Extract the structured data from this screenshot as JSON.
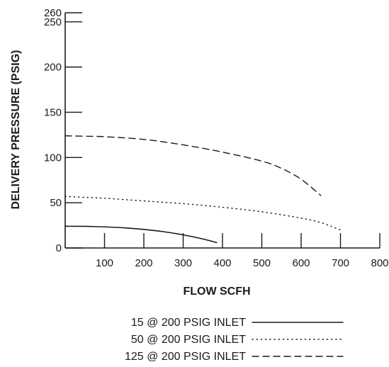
{
  "chart_data": {
    "type": "line",
    "xlabel": "FLOW SCFH",
    "ylabel": "DELIVERY PRESSURE (PSIG)",
    "xlim": [
      0,
      800
    ],
    "ylim": [
      0,
      260
    ],
    "x_ticks": [
      100,
      200,
      300,
      400,
      500,
      600,
      700,
      800
    ],
    "y_ticks": [
      0,
      50,
      100,
      150,
      200,
      250,
      260
    ],
    "grid": false,
    "legend_position": "bottom",
    "series": [
      {
        "name": "15 @ 200 PSIG INLET",
        "style": "solid",
        "x": [
          0,
          50,
          100,
          150,
          200,
          250,
          300,
          350,
          385
        ],
        "y": [
          24,
          23.9,
          23.3,
          22.3,
          20.5,
          18,
          14.5,
          10,
          6
        ]
      },
      {
        "name": "50 @ 200 PSIG INLET",
        "style": "dotted",
        "x": [
          0,
          50,
          100,
          200,
          300,
          400,
          500,
          600,
          650,
          700
        ],
        "y": [
          57,
          56,
          55,
          52,
          49,
          45,
          40,
          33,
          28,
          20
        ]
      },
      {
        "name": "125 @ 200 PSIG INLET",
        "style": "dashed",
        "x": [
          0,
          50,
          100,
          200,
          300,
          400,
          500,
          550,
          600,
          650
        ],
        "y": [
          124,
          123.5,
          123,
          120,
          114,
          106,
          96,
          88,
          76,
          58
        ]
      }
    ]
  }
}
